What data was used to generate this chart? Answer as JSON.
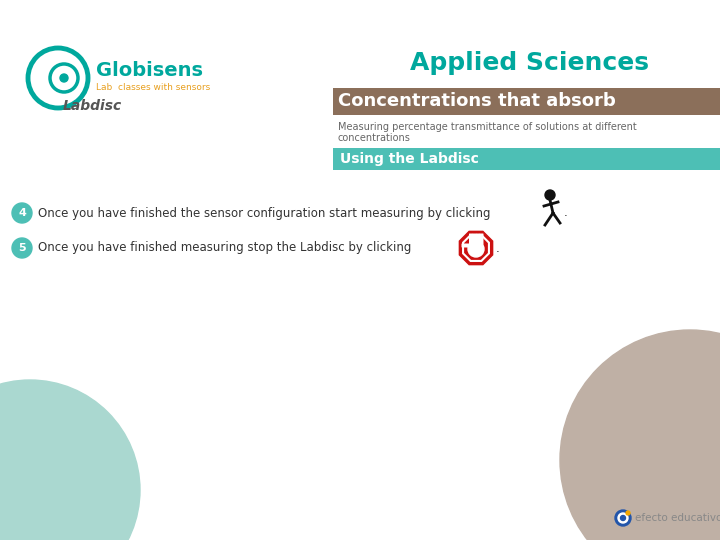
{
  "bg_color": "#ffffff",
  "title_applied": "Applied Sciences",
  "title_applied_color": "#00a89d",
  "title_applied_fontsize": 18,
  "header_bar_color": "#8B6F5A",
  "header_text": "Concentrations that absorb",
  "header_text_color": "#ffffff",
  "header_text_fontsize": 13,
  "subtitle_line1": "Measuring percentage transmittance of solutions at different",
  "subtitle_line2": "concentrations",
  "subtitle_color": "#666666",
  "subtitle_fontsize": 7,
  "section_bar_color": "#4dbfb5",
  "section_text": "Using the Labdisc",
  "section_text_color": "#ffffff",
  "section_text_fontsize": 10,
  "item4_text": "Once you have finished the sensor configuration start measuring by clicking",
  "item5_text": "Once you have finished measuring stop the Labdisc by clicking",
  "item_fontsize": 8.5,
  "item_color": "#333333",
  "bullet_color": "#4dbfb5",
  "globisens_color": "#00a89d",
  "labclasses_color": "#e8a020",
  "labdisc_text_color": "#555555",
  "teal_circle_color": "#aad8d0",
  "taupe_circle_color": "#bfb0a5",
  "efecto_text_color": "#888888",
  "efecto_logo_color": "#2255aa"
}
